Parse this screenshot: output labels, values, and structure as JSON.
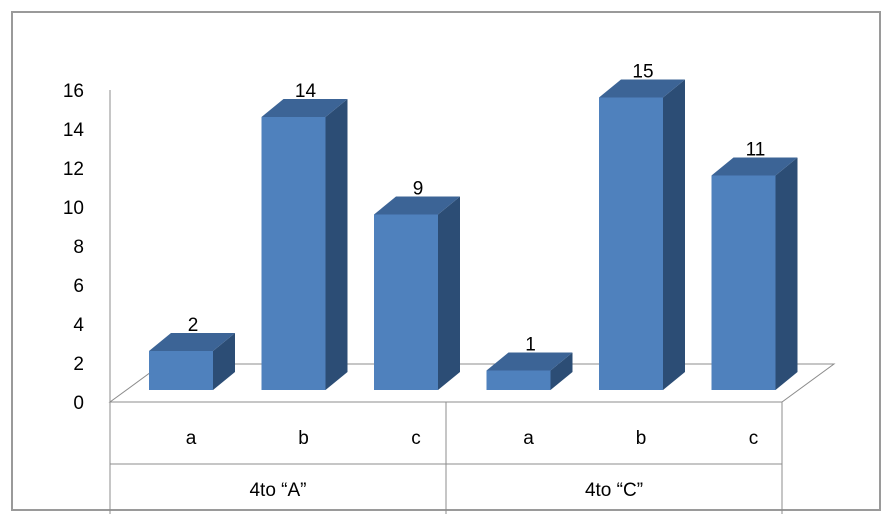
{
  "chart_data": {
    "type": "bar",
    "style": "3d-column",
    "groups": [
      {
        "label": "4to “A”",
        "categories": [
          "a",
          "b",
          "c"
        ],
        "values": [
          2,
          14,
          9
        ]
      },
      {
        "label": "4to “C”",
        "categories": [
          "a",
          "b",
          "c"
        ],
        "values": [
          1,
          15,
          11
        ]
      }
    ],
    "y_ticks": [
      "0",
      "2",
      "4",
      "6",
      "8",
      "10",
      "12",
      "14",
      "16"
    ],
    "ylim": [
      0,
      16
    ],
    "grid": false,
    "legend": "none",
    "data_labels": true,
    "colors": {
      "front": "#4f81bd",
      "side": "#2c4d75",
      "top": "#3c6496"
    }
  }
}
